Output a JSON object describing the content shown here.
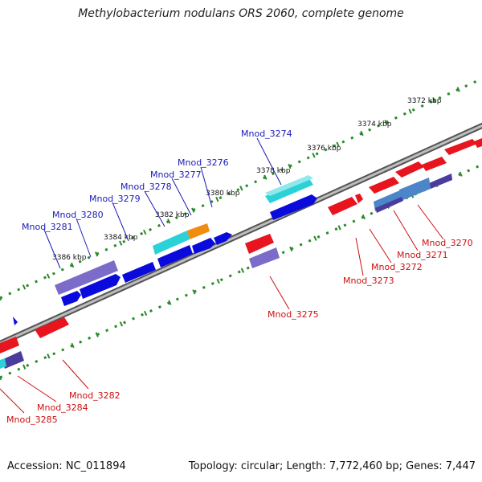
{
  "title": "Methylobacterium nodulans ORS 2060, complete genome",
  "footer": {
    "accession": "Accession: NC_011894",
    "summary": "Topology: circular; Length: 7,772,460 bp; Genes: 7,447"
  },
  "ticks": [
    {
      "label": "3372 kbp"
    },
    {
      "label": "3374 kbp"
    },
    {
      "label": "3376 kbp"
    },
    {
      "label": "3378 kbp"
    },
    {
      "label": "3380 kbp"
    },
    {
      "label": "3382 kbp"
    },
    {
      "label": "3384 kbp"
    },
    {
      "label": "3386 kbp"
    }
  ],
  "genes_top": [
    {
      "label": "Mnod_3274"
    },
    {
      "label": "Mnod_3276"
    },
    {
      "label": "Mnod_3277"
    },
    {
      "label": "Mnod_3278"
    },
    {
      "label": "Mnod_3279"
    },
    {
      "label": "Mnod_3280"
    },
    {
      "label": "Mnod_3281"
    }
  ],
  "genes_bottom": [
    {
      "label": "Mnod_3270"
    },
    {
      "label": "Mnod_3271"
    },
    {
      "label": "Mnod_3272"
    },
    {
      "label": "Mnod_3273"
    },
    {
      "label": "Mnod_3275"
    },
    {
      "label": "Mnod_3282"
    },
    {
      "label": "Mnod_3284"
    },
    {
      "label": "Mnod_3285"
    }
  ],
  "colors": {
    "forward": "#0a0adc",
    "reverse": "#e8141e",
    "cyan": "#2ad2d8",
    "orange": "#f08c10",
    "lavender": "#7a6cc8",
    "steel": "#4c86c8",
    "backbone": "#7c7c7c",
    "tick": "#2a8a2a",
    "top_label": "#1a1ab8",
    "bottom_label": "#cc1010"
  }
}
